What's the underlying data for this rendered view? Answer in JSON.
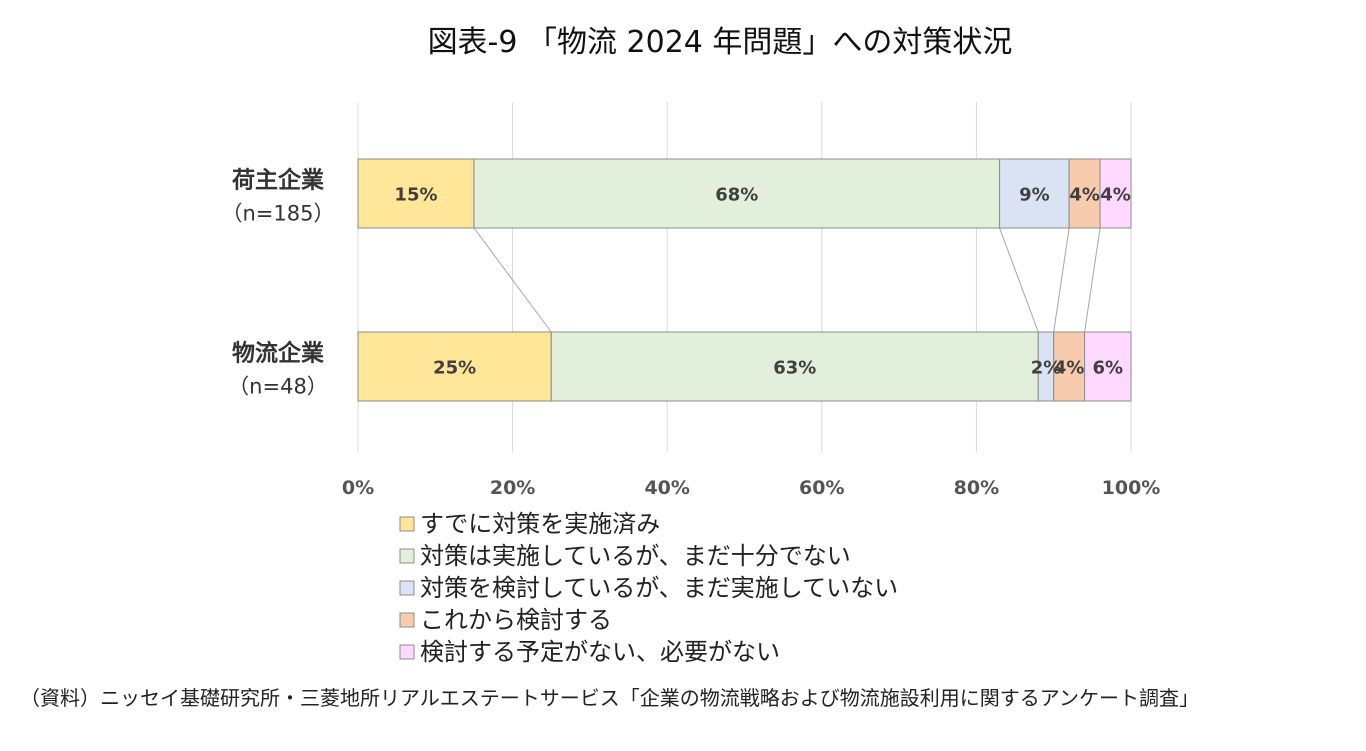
{
  "chart_data": {
    "type": "bar",
    "orientation": "horizontal",
    "stacked": true,
    "percent_stacked": true,
    "title": "図表-9 「物流 2024 年問題」への対策状況",
    "categories": [
      {
        "name": "荷主企業",
        "sub": "（n=185）"
      },
      {
        "name": "物流企業",
        "sub": "（n=48）"
      }
    ],
    "series": [
      {
        "name": "すでに対策を実施済み",
        "values": [
          15,
          25
        ],
        "labels": [
          "15%",
          "25%"
        ],
        "color": "#ffe699"
      },
      {
        "name": "対策は実施しているが、まだ十分でない",
        "values": [
          68,
          63
        ],
        "labels": [
          "68%",
          "63%"
        ],
        "color": "#e2efda"
      },
      {
        "name": "対策を検討しているが、まだ実施していない",
        "values": [
          9,
          2
        ],
        "labels": [
          "9%",
          "2%"
        ],
        "color": "#dae3f3"
      },
      {
        "name": "これから検討する",
        "values": [
          4,
          4
        ],
        "labels": [
          "4%",
          "4%"
        ],
        "color": "#f8cbad"
      },
      {
        "name": "検討する予定がない、必要がない",
        "values": [
          4,
          6
        ],
        "labels": [
          "4%",
          "6%"
        ],
        "color": "#ffd9ff"
      }
    ],
    "xlim": [
      0,
      100
    ],
    "xticks": [
      "0%",
      "20%",
      "40%",
      "60%",
      "80%",
      "100%"
    ],
    "grid": true,
    "series_lines": true,
    "legend_position": "bottom"
  },
  "source": "（資料）ニッセイ基礎研究所・三菱地所リアルエステートサービス「企業の物流戦略および物流施設利用に関するアンケート調査」"
}
